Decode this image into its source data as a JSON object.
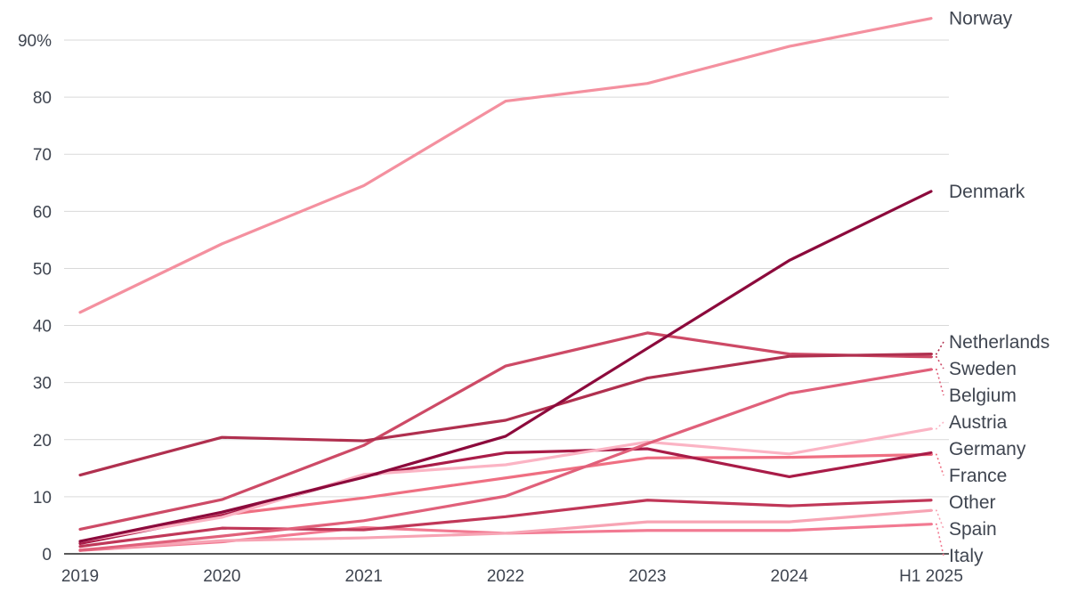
{
  "chart_data": {
    "type": "line",
    "title": "",
    "xlabel": "",
    "ylabel": "",
    "categories": [
      "2019",
      "2020",
      "2021",
      "2022",
      "2023",
      "2024",
      "H1 2025"
    ],
    "ylim": [
      0,
      90
    ],
    "yticks": [
      0,
      10,
      20,
      30,
      40,
      50,
      60,
      70,
      80,
      90
    ],
    "ytick_labels": [
      "0",
      "10",
      "20",
      "30",
      "40",
      "50",
      "60",
      "70",
      "80",
      "90%"
    ],
    "grid": true,
    "legend": "direct labels at right end of lines",
    "series": [
      {
        "name": "Norway",
        "color": "#f4909f",
        "values": [
          42.3,
          54.3,
          64.5,
          79.3,
          82.4,
          88.9,
          93.8
        ]
      },
      {
        "name": "Denmark",
        "color": "#8c0a3c",
        "values": [
          2.2,
          7.3,
          13.4,
          20.6,
          36.0,
          51.4,
          63.5
        ]
      },
      {
        "name": "Netherlands",
        "color": "#b0304f",
        "values": [
          13.8,
          20.4,
          19.8,
          23.4,
          30.8,
          34.6,
          35.0
        ]
      },
      {
        "name": "Sweden",
        "color": "#cd4a66",
        "values": [
          4.3,
          9.5,
          19.0,
          32.9,
          38.7,
          35.0,
          34.5
        ]
      },
      {
        "name": "Belgium",
        "color": "#e0607a",
        "values": [
          0.6,
          3.1,
          5.8,
          10.1,
          19.3,
          28.1,
          32.3
        ]
      },
      {
        "name": "Austria",
        "color": "#fbb4c4",
        "values": [
          2.2,
          6.4,
          13.9,
          15.6,
          19.6,
          17.5,
          21.9
        ]
      },
      {
        "name": "Germany",
        "color": "#a91c48",
        "values": [
          1.8,
          6.7,
          13.6,
          17.7,
          18.4,
          13.5,
          17.7
        ]
      },
      {
        "name": "France",
        "color": "#ef6f82",
        "values": [
          1.9,
          6.8,
          9.8,
          13.3,
          16.8,
          16.9,
          17.4
        ]
      },
      {
        "name": "Other",
        "color": "#c03758",
        "values": [
          1.3,
          4.5,
          4.2,
          6.5,
          9.4,
          8.4,
          9.4
        ]
      },
      {
        "name": "Spain",
        "color": "#f7a4b4",
        "values": [
          0.7,
          2.3,
          2.8,
          3.6,
          5.6,
          5.6,
          7.6
        ]
      },
      {
        "name": "Italy",
        "color": "#f27a92",
        "values": [
          0.6,
          2.1,
          4.6,
          3.6,
          4.1,
          4.1,
          5.2
        ]
      }
    ]
  }
}
